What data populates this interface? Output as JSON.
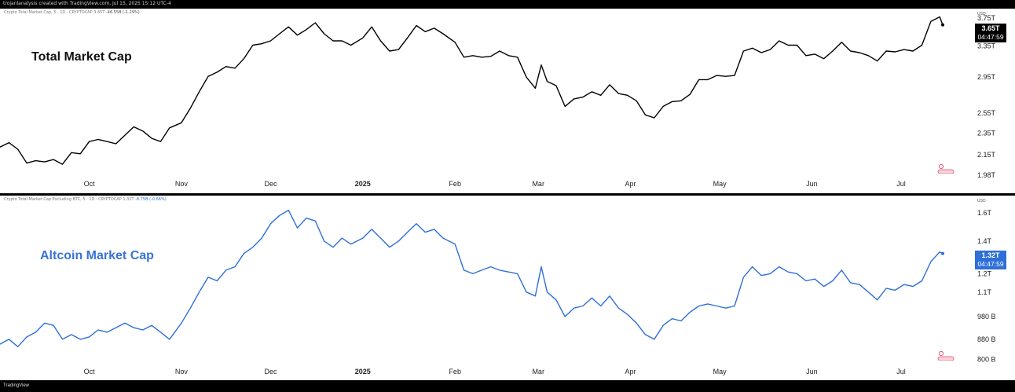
{
  "header_text": "trojanlanalysis created with TradingView.com, Jul 15, 2025 15:12 UTC-4",
  "footer_text": "TradingView",
  "chart_data": [
    {
      "type": "line",
      "series_name": "Crypto Total Market Cap, 5 · 1D · CRYPTOCAP",
      "info_value": "3.65T",
      "info_change": "-46.55B (-1.29%)",
      "annotation": "Total Market Cap",
      "unit_label": "USD",
      "current_value_label": "3.65T",
      "countdown": "04:47:59",
      "line_color": "#000000",
      "y_axis": {
        "scale": "log",
        "ticks": [
          {
            "label": "3.75T",
            "value": 3.75
          },
          {
            "label": "3.35T",
            "value": 3.35
          },
          {
            "label": "2.95T",
            "value": 2.95
          },
          {
            "label": "2.55T",
            "value": 2.55
          },
          {
            "label": "2.35T",
            "value": 2.35
          },
          {
            "label": "2.15T",
            "value": 2.15
          },
          {
            "label": "1.98T",
            "value": 1.98
          }
        ]
      },
      "x_axis": {
        "ticks": [
          {
            "label": "Oct",
            "date": "2024-10-01",
            "bold": false
          },
          {
            "label": "Nov",
            "date": "2024-11-01",
            "bold": false
          },
          {
            "label": "Dec",
            "date": "2024-12-01",
            "bold": false
          },
          {
            "label": "2025",
            "date": "2025-01-01",
            "bold": true
          },
          {
            "label": "Feb",
            "date": "2025-02-01",
            "bold": false
          },
          {
            "label": "Mar",
            "date": "2025-03-01",
            "bold": false
          },
          {
            "label": "Apr",
            "date": "2025-04-01",
            "bold": false
          },
          {
            "label": "May",
            "date": "2025-05-01",
            "bold": false
          },
          {
            "label": "Jun",
            "date": "2025-06-01",
            "bold": false
          },
          {
            "label": "Jul",
            "date": "2025-07-01",
            "bold": false
          }
        ]
      },
      "points": [
        [
          "2024-09-01",
          2.22
        ],
        [
          "2024-09-04",
          2.26
        ],
        [
          "2024-09-07",
          2.2
        ],
        [
          "2024-09-10",
          2.08
        ],
        [
          "2024-09-13",
          2.1
        ],
        [
          "2024-09-16",
          2.09
        ],
        [
          "2024-09-19",
          2.11
        ],
        [
          "2024-09-22",
          2.07
        ],
        [
          "2024-09-25",
          2.17
        ],
        [
          "2024-09-28",
          2.16
        ],
        [
          "2024-10-01",
          2.27
        ],
        [
          "2024-10-04",
          2.29
        ],
        [
          "2024-10-07",
          2.27
        ],
        [
          "2024-10-10",
          2.25
        ],
        [
          "2024-10-13",
          2.33
        ],
        [
          "2024-10-16",
          2.41
        ],
        [
          "2024-10-19",
          2.37
        ],
        [
          "2024-10-22",
          2.3
        ],
        [
          "2024-10-25",
          2.27
        ],
        [
          "2024-10-28",
          2.4
        ],
        [
          "2024-11-01",
          2.45
        ],
        [
          "2024-11-04",
          2.6
        ],
        [
          "2024-11-07",
          2.78
        ],
        [
          "2024-11-10",
          2.96
        ],
        [
          "2024-11-13",
          3.01
        ],
        [
          "2024-11-16",
          3.08
        ],
        [
          "2024-11-19",
          3.06
        ],
        [
          "2024-11-22",
          3.18
        ],
        [
          "2024-11-25",
          3.36
        ],
        [
          "2024-11-28",
          3.38
        ],
        [
          "2024-12-01",
          3.42
        ],
        [
          "2024-12-04",
          3.52
        ],
        [
          "2024-12-07",
          3.62
        ],
        [
          "2024-12-10",
          3.5
        ],
        [
          "2024-12-13",
          3.58
        ],
        [
          "2024-12-16",
          3.68
        ],
        [
          "2024-12-19",
          3.52
        ],
        [
          "2024-12-22",
          3.42
        ],
        [
          "2024-12-25",
          3.42
        ],
        [
          "2024-12-28",
          3.36
        ],
        [
          "2025-01-01",
          3.46
        ],
        [
          "2025-01-04",
          3.62
        ],
        [
          "2025-01-07",
          3.42
        ],
        [
          "2025-01-10",
          3.28
        ],
        [
          "2025-01-13",
          3.3
        ],
        [
          "2025-01-16",
          3.46
        ],
        [
          "2025-01-19",
          3.64
        ],
        [
          "2025-01-22",
          3.55
        ],
        [
          "2025-01-25",
          3.6
        ],
        [
          "2025-01-28",
          3.52
        ],
        [
          "2025-02-01",
          3.4
        ],
        [
          "2025-02-04",
          3.2
        ],
        [
          "2025-02-07",
          3.22
        ],
        [
          "2025-02-10",
          3.2
        ],
        [
          "2025-02-13",
          3.21
        ],
        [
          "2025-02-16",
          3.28
        ],
        [
          "2025-02-19",
          3.22
        ],
        [
          "2025-02-22",
          3.2
        ],
        [
          "2025-02-25",
          2.95
        ],
        [
          "2025-02-28",
          2.82
        ],
        [
          "2025-03-02",
          3.1
        ],
        [
          "2025-03-04",
          2.9
        ],
        [
          "2025-03-07",
          2.85
        ],
        [
          "2025-03-10",
          2.62
        ],
        [
          "2025-03-13",
          2.7
        ],
        [
          "2025-03-16",
          2.72
        ],
        [
          "2025-03-19",
          2.78
        ],
        [
          "2025-03-22",
          2.74
        ],
        [
          "2025-03-25",
          2.86
        ],
        [
          "2025-03-28",
          2.76
        ],
        [
          "2025-03-31",
          2.74
        ],
        [
          "2025-04-03",
          2.68
        ],
        [
          "2025-04-06",
          2.53
        ],
        [
          "2025-04-09",
          2.5
        ],
        [
          "2025-04-12",
          2.62
        ],
        [
          "2025-04-15",
          2.67
        ],
        [
          "2025-04-18",
          2.68
        ],
        [
          "2025-04-21",
          2.75
        ],
        [
          "2025-04-24",
          2.92
        ],
        [
          "2025-04-27",
          2.92
        ],
        [
          "2025-04-30",
          2.97
        ],
        [
          "2025-05-03",
          2.96
        ],
        [
          "2025-05-06",
          2.97
        ],
        [
          "2025-05-09",
          3.28
        ],
        [
          "2025-05-12",
          3.32
        ],
        [
          "2025-05-15",
          3.26
        ],
        [
          "2025-05-18",
          3.3
        ],
        [
          "2025-05-21",
          3.42
        ],
        [
          "2025-05-24",
          3.36
        ],
        [
          "2025-05-27",
          3.36
        ],
        [
          "2025-05-30",
          3.22
        ],
        [
          "2025-06-02",
          3.24
        ],
        [
          "2025-06-05",
          3.18
        ],
        [
          "2025-06-08",
          3.28
        ],
        [
          "2025-06-11",
          3.4
        ],
        [
          "2025-06-14",
          3.28
        ],
        [
          "2025-06-17",
          3.26
        ],
        [
          "2025-06-20",
          3.22
        ],
        [
          "2025-06-23",
          3.15
        ],
        [
          "2025-06-26",
          3.28
        ],
        [
          "2025-06-29",
          3.27
        ],
        [
          "2025-07-02",
          3.3
        ],
        [
          "2025-07-05",
          3.28
        ],
        [
          "2025-07-08",
          3.36
        ],
        [
          "2025-07-11",
          3.7
        ],
        [
          "2025-07-14",
          3.77
        ],
        [
          "2025-07-15",
          3.65
        ]
      ]
    },
    {
      "type": "line",
      "series_name": "Crypto Total Market Cap Excluding BTC, 5 · 1D · CRYPTOCAP",
      "info_value": "1.32T",
      "info_change": "-8.75B (-0.66%)",
      "annotation": "Altcoin Market Cap",
      "unit_label": "USD",
      "current_value_label": "1.32T",
      "countdown": "04:47:59",
      "line_color": "#2e6fd8",
      "y_axis": {
        "scale": "log",
        "ticks": [
          {
            "label": "1.6T",
            "value": 1.6
          },
          {
            "label": "1.4T",
            "value": 1.4
          },
          {
            "label": "1.2T",
            "value": 1.2
          },
          {
            "label": "1.1T",
            "value": 1.1
          },
          {
            "label": "980 B",
            "value": 0.98
          },
          {
            "label": "880 B",
            "value": 0.88
          },
          {
            "label": "800 B",
            "value": 0.8
          }
        ]
      },
      "x_axis": {
        "ticks": [
          {
            "label": "Oct",
            "date": "2024-10-01",
            "bold": false
          },
          {
            "label": "Nov",
            "date": "2024-11-01",
            "bold": false
          },
          {
            "label": "Dec",
            "date": "2024-12-01",
            "bold": false
          },
          {
            "label": "2025",
            "date": "2025-01-01",
            "bold": true
          },
          {
            "label": "Feb",
            "date": "2025-02-01",
            "bold": false
          },
          {
            "label": "Mar",
            "date": "2025-03-01",
            "bold": false
          },
          {
            "label": "Apr",
            "date": "2025-04-01",
            "bold": false
          },
          {
            "label": "May",
            "date": "2025-05-01",
            "bold": false
          },
          {
            "label": "Jun",
            "date": "2025-06-01",
            "bold": false
          },
          {
            "label": "Jul",
            "date": "2025-07-01",
            "bold": false
          }
        ]
      },
      "points": [
        [
          "2024-09-01",
          0.86
        ],
        [
          "2024-09-04",
          0.88
        ],
        [
          "2024-09-07",
          0.85
        ],
        [
          "2024-09-10",
          0.89
        ],
        [
          "2024-09-13",
          0.91
        ],
        [
          "2024-09-16",
          0.95
        ],
        [
          "2024-09-19",
          0.94
        ],
        [
          "2024-09-22",
          0.88
        ],
        [
          "2024-09-25",
          0.9
        ],
        [
          "2024-09-28",
          0.88
        ],
        [
          "2024-10-01",
          0.89
        ],
        [
          "2024-10-04",
          0.92
        ],
        [
          "2024-10-07",
          0.91
        ],
        [
          "2024-10-10",
          0.93
        ],
        [
          "2024-10-13",
          0.95
        ],
        [
          "2024-10-16",
          0.93
        ],
        [
          "2024-10-19",
          0.92
        ],
        [
          "2024-10-22",
          0.94
        ],
        [
          "2024-10-25",
          0.91
        ],
        [
          "2024-10-28",
          0.88
        ],
        [
          "2024-11-01",
          0.95
        ],
        [
          "2024-11-04",
          1.02
        ],
        [
          "2024-11-07",
          1.1
        ],
        [
          "2024-11-10",
          1.18
        ],
        [
          "2024-11-13",
          1.16
        ],
        [
          "2024-11-16",
          1.22
        ],
        [
          "2024-11-19",
          1.24
        ],
        [
          "2024-11-22",
          1.32
        ],
        [
          "2024-11-25",
          1.36
        ],
        [
          "2024-11-28",
          1.42
        ],
        [
          "2024-12-01",
          1.52
        ],
        [
          "2024-12-04",
          1.58
        ],
        [
          "2024-12-07",
          1.62
        ],
        [
          "2024-12-10",
          1.49
        ],
        [
          "2024-12-13",
          1.56
        ],
        [
          "2024-12-16",
          1.54
        ],
        [
          "2024-12-19",
          1.4
        ],
        [
          "2024-12-22",
          1.36
        ],
        [
          "2024-12-25",
          1.42
        ],
        [
          "2024-12-28",
          1.38
        ],
        [
          "2025-01-01",
          1.42
        ],
        [
          "2025-01-04",
          1.48
        ],
        [
          "2025-01-07",
          1.42
        ],
        [
          "2025-01-10",
          1.36
        ],
        [
          "2025-01-13",
          1.4
        ],
        [
          "2025-01-16",
          1.46
        ],
        [
          "2025-01-19",
          1.52
        ],
        [
          "2025-01-22",
          1.46
        ],
        [
          "2025-01-25",
          1.48
        ],
        [
          "2025-01-28",
          1.42
        ],
        [
          "2025-02-01",
          1.38
        ],
        [
          "2025-02-04",
          1.22
        ],
        [
          "2025-02-07",
          1.2
        ],
        [
          "2025-02-10",
          1.22
        ],
        [
          "2025-02-13",
          1.24
        ],
        [
          "2025-02-16",
          1.22
        ],
        [
          "2025-02-19",
          1.21
        ],
        [
          "2025-02-22",
          1.2
        ],
        [
          "2025-02-25",
          1.1
        ],
        [
          "2025-02-28",
          1.08
        ],
        [
          "2025-03-02",
          1.24
        ],
        [
          "2025-03-04",
          1.1
        ],
        [
          "2025-03-07",
          1.06
        ],
        [
          "2025-03-10",
          0.98
        ],
        [
          "2025-03-13",
          1.02
        ],
        [
          "2025-03-16",
          1.03
        ],
        [
          "2025-03-19",
          1.07
        ],
        [
          "2025-03-22",
          1.03
        ],
        [
          "2025-03-25",
          1.08
        ],
        [
          "2025-03-28",
          1.02
        ],
        [
          "2025-03-31",
          0.99
        ],
        [
          "2025-04-03",
          0.95
        ],
        [
          "2025-04-06",
          0.9
        ],
        [
          "2025-04-09",
          0.88
        ],
        [
          "2025-04-12",
          0.94
        ],
        [
          "2025-04-15",
          0.97
        ],
        [
          "2025-04-18",
          0.96
        ],
        [
          "2025-04-21",
          1.0
        ],
        [
          "2025-04-24",
          1.03
        ],
        [
          "2025-04-27",
          1.04
        ],
        [
          "2025-04-30",
          1.03
        ],
        [
          "2025-05-03",
          1.02
        ],
        [
          "2025-05-06",
          1.03
        ],
        [
          "2025-05-09",
          1.18
        ],
        [
          "2025-05-12",
          1.24
        ],
        [
          "2025-05-15",
          1.19
        ],
        [
          "2025-05-18",
          1.2
        ],
        [
          "2025-05-21",
          1.24
        ],
        [
          "2025-05-24",
          1.21
        ],
        [
          "2025-05-27",
          1.2
        ],
        [
          "2025-05-30",
          1.16
        ],
        [
          "2025-06-02",
          1.17
        ],
        [
          "2025-06-05",
          1.13
        ],
        [
          "2025-06-08",
          1.16
        ],
        [
          "2025-06-11",
          1.22
        ],
        [
          "2025-06-14",
          1.15
        ],
        [
          "2025-06-17",
          1.14
        ],
        [
          "2025-06-20",
          1.1
        ],
        [
          "2025-06-23",
          1.06
        ],
        [
          "2025-06-26",
          1.12
        ],
        [
          "2025-06-29",
          1.11
        ],
        [
          "2025-07-02",
          1.14
        ],
        [
          "2025-07-05",
          1.13
        ],
        [
          "2025-07-08",
          1.16
        ],
        [
          "2025-07-11",
          1.27
        ],
        [
          "2025-07-14",
          1.33
        ],
        [
          "2025-07-15",
          1.32
        ]
      ]
    }
  ]
}
